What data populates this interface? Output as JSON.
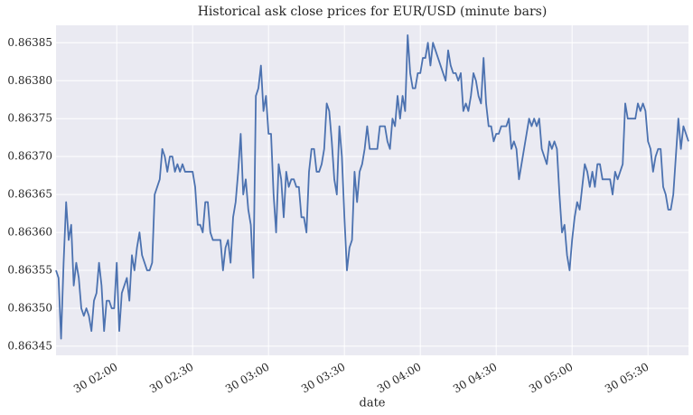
{
  "chart_data": {
    "type": "line",
    "title": "Historical ask close prices for EUR/USD (minute bars)",
    "xlabel": "date",
    "xlim": [
      "30 01:36",
      "30 05:46"
    ],
    "xticks": [
      "30 02:00",
      "30 02:30",
      "30 03:00",
      "30 03:30",
      "30 04:00",
      "30 04:30",
      "30 05:00",
      "30 05:30"
    ],
    "ylim": [
      0.863438,
      0.863873
    ],
    "yticks": [
      0.86345,
      {
        "value": 0.8635,
        "label": "0.86350"
      },
      0.86355,
      {
        "value": 0.8636,
        "label": "0.86360"
      },
      0.86365,
      {
        "value": 0.8637,
        "label": "0.86370"
      },
      0.86375,
      {
        "value": 0.8638,
        "label": "0.86380"
      },
      0.86385
    ],
    "grid": true,
    "series": [
      {
        "name": "ask close",
        "color": "#4c72b0",
        "x": [
          "30 01:36",
          "30 01:37",
          "30 01:38",
          "30 01:39",
          "30 01:40",
          "30 01:41",
          "30 01:42",
          "30 01:43",
          "30 01:44",
          "30 01:45",
          "30 01:46",
          "30 01:47",
          "30 01:48",
          "30 01:49",
          "30 01:50",
          "30 01:51",
          "30 01:52",
          "30 01:53",
          "30 01:54",
          "30 01:55",
          "30 01:56",
          "30 01:57",
          "30 01:58",
          "30 01:59",
          "30 02:00",
          "30 02:01",
          "30 02:02",
          "30 02:03",
          "30 02:04",
          "30 02:05",
          "30 02:06",
          "30 02:07",
          "30 02:08",
          "30 02:09",
          "30 02:10",
          "30 02:11",
          "30 02:12",
          "30 02:13",
          "30 02:14",
          "30 02:15",
          "30 02:17",
          "30 02:18",
          "30 02:19",
          "30 02:20",
          "30 02:21",
          "30 02:22",
          "30 02:23",
          "30 02:24",
          "30 02:25",
          "30 02:26",
          "30 02:27",
          "30 02:30",
          "30 02:31",
          "30 02:32",
          "30 02:33",
          "30 02:34",
          "30 02:35",
          "30 02:36",
          "30 02:37",
          "30 02:38",
          "30 02:41",
          "30 02:42",
          "30 02:43",
          "30 02:44",
          "30 02:45",
          "30 02:46",
          "30 02:47",
          "30 02:48",
          "30 02:49",
          "30 02:50",
          "30 02:51",
          "30 02:52",
          "30 02:53",
          "30 02:54",
          "30 02:55",
          "30 02:56",
          "30 02:57",
          "30 02:58",
          "30 02:59",
          "30 03:00",
          "30 03:01",
          "30 03:02",
          "30 03:03",
          "30 03:04",
          "30 03:05",
          "30 03:06",
          "30 03:07",
          "30 03:08",
          "30 03:09",
          "30 03:10",
          "30 03:11",
          "30 03:12",
          "30 03:13",
          "30 03:14",
          "30 03:15",
          "30 03:16",
          "30 03:17",
          "30 03:18",
          "30 03:19",
          "30 03:20",
          "30 03:21",
          "30 03:22",
          "30 03:23",
          "30 03:24",
          "30 03:25",
          "30 03:26",
          "30 03:27",
          "30 03:28",
          "30 03:29",
          "30 03:30",
          "30 03:31",
          "30 03:32",
          "30 03:33",
          "30 03:34",
          "30 03:35",
          "30 03:36",
          "30 03:37",
          "30 03:38",
          "30 03:39",
          "30 03:40",
          "30 03:43",
          "30 03:44",
          "30 03:46",
          "30 03:47",
          "30 03:48",
          "30 03:49",
          "30 03:50",
          "30 03:51",
          "30 03:52",
          "30 03:53",
          "30 03:54",
          "30 03:55",
          "30 03:56",
          "30 03:57",
          "30 03:58",
          "30 03:59",
          "30 04:00",
          "30 04:01",
          "30 04:02",
          "30 04:03",
          "30 04:04",
          "30 04:05",
          "30 04:06",
          "30 04:07",
          "30 04:08",
          "30 04:09",
          "30 04:10",
          "30 04:11",
          "30 04:12",
          "30 04:13",
          "30 04:14",
          "30 04:15",
          "30 04:16",
          "30 04:17",
          "30 04:18",
          "30 04:19",
          "30 04:20",
          "30 04:21",
          "30 04:22",
          "30 04:23",
          "30 04:24",
          "30 04:25",
          "30 04:26",
          "30 04:27",
          "30 04:28",
          "30 04:29",
          "30 04:30",
          "30 04:31",
          "30 04:32",
          "30 04:34",
          "30 04:35",
          "30 04:36",
          "30 04:37",
          "30 04:38",
          "30 04:39",
          "30 04:40",
          "30 04:42",
          "30 04:43",
          "30 04:44",
          "30 04:45",
          "30 04:46",
          "30 04:47",
          "30 04:48",
          "30 04:50",
          "30 04:51",
          "30 04:52",
          "30 04:53",
          "30 04:54",
          "30 04:55",
          "30 04:56",
          "30 04:57",
          "30 04:58",
          "30 04:59",
          "30 05:00",
          "30 05:01",
          "30 05:02",
          "30 05:03",
          "30 05:04",
          "30 05:05",
          "30 05:06",
          "30 05:07",
          "30 05:08",
          "30 05:09",
          "30 05:10",
          "30 05:11",
          "30 05:12",
          "30 05:15",
          "30 05:16",
          "30 05:17",
          "30 05:18",
          "30 05:19",
          "30 05:20",
          "30 05:21",
          "30 05:22",
          "30 05:25",
          "30 05:26",
          "30 05:27",
          "30 05:28",
          "30 05:29",
          "30 05:30",
          "30 05:31",
          "30 05:32",
          "30 05:33",
          "30 05:34",
          "30 05:35",
          "30 05:36",
          "30 05:37",
          "30 05:38",
          "30 05:39",
          "30 05:40",
          "30 05:41",
          "30 05:42",
          "30 05:43",
          "30 05:44",
          "30 05:45",
          "30 05:46"
        ],
        "values": [
          0.86355,
          0.86354,
          0.86346,
          0.86356,
          0.86364,
          0.86359,
          0.86361,
          0.86353,
          0.86356,
          0.86354,
          0.8635,
          0.86349,
          0.8635,
          0.86349,
          0.86347,
          0.86351,
          0.86352,
          0.86356,
          0.86353,
          0.86347,
          0.86351,
          0.86351,
          0.8635,
          0.8635,
          0.86356,
          0.86347,
          0.86352,
          0.86353,
          0.86354,
          0.86351,
          0.86357,
          0.86355,
          0.86358,
          0.8636,
          0.86357,
          0.86356,
          0.86355,
          0.86355,
          0.86356,
          0.86365,
          0.86367,
          0.86371,
          0.8637,
          0.86368,
          0.8637,
          0.8637,
          0.86368,
          0.86369,
          0.86368,
          0.86369,
          0.86368,
          0.86368,
          0.86366,
          0.86361,
          0.86361,
          0.8636,
          0.86364,
          0.86364,
          0.8636,
          0.86359,
          0.86359,
          0.86355,
          0.86358,
          0.86359,
          0.86356,
          0.86362,
          0.86364,
          0.86368,
          0.86373,
          0.86365,
          0.86367,
          0.86363,
          0.86361,
          0.86354,
          0.86378,
          0.86379,
          0.86382,
          0.86376,
          0.86378,
          0.86373,
          0.86373,
          0.86365,
          0.8636,
          0.86369,
          0.86367,
          0.86362,
          0.86368,
          0.86366,
          0.86367,
          0.86367,
          0.86366,
          0.86366,
          0.86362,
          0.86362,
          0.8636,
          0.86368,
          0.86371,
          0.86371,
          0.86368,
          0.86368,
          0.86369,
          0.86371,
          0.86377,
          0.86376,
          0.86372,
          0.86367,
          0.86365,
          0.86374,
          0.8637,
          0.86362,
          0.86355,
          0.86358,
          0.86359,
          0.86368,
          0.86364,
          0.86368,
          0.86369,
          0.86371,
          0.86374,
          0.86371,
          0.86371,
          0.86374,
          0.86374,
          0.86372,
          0.86371,
          0.86375,
          0.86374,
          0.86378,
          0.86375,
          0.86378,
          0.86376,
          0.86386,
          0.86381,
          0.86379,
          0.86379,
          0.86381,
          0.86381,
          0.86383,
          0.86383,
          0.86385,
          0.86382,
          0.86385,
          0.86384,
          0.86383,
          0.86382,
          0.86381,
          0.8638,
          0.86384,
          0.86382,
          0.86381,
          0.86381,
          0.8638,
          0.86381,
          0.86376,
          0.86377,
          0.86376,
          0.86378,
          0.86381,
          0.8638,
          0.86378,
          0.86377,
          0.86383,
          0.86377,
          0.86374,
          0.86374,
          0.86372,
          0.86373,
          0.86373,
          0.86374,
          0.86374,
          0.86375,
          0.86371,
          0.86372,
          0.86371,
          0.86367,
          0.86369,
          0.86373,
          0.86375,
          0.86374,
          0.86375,
          0.86374,
          0.86375,
          0.86371,
          0.86369,
          0.86372,
          0.86371,
          0.86372,
          0.86371,
          0.86365,
          0.8636,
          0.86361,
          0.86357,
          0.86355,
          0.86359,
          0.86362,
          0.86364,
          0.86363,
          0.86366,
          0.86369,
          0.86368,
          0.86366,
          0.86368,
          0.86366,
          0.86369,
          0.86369,
          0.86367,
          0.86367,
          0.86365,
          0.86368,
          0.86367,
          0.86368,
          0.86369,
          0.86377,
          0.86375,
          0.86375,
          0.86377,
          0.86376,
          0.86377,
          0.86376,
          0.86372,
          0.86371,
          0.86368,
          0.8637,
          0.86371,
          0.86371,
          0.86366,
          0.86365,
          0.86363,
          0.86363,
          0.86365,
          0.8637,
          0.86375,
          0.86371,
          0.86374,
          0.86373,
          0.86372
        ]
      }
    ]
  }
}
